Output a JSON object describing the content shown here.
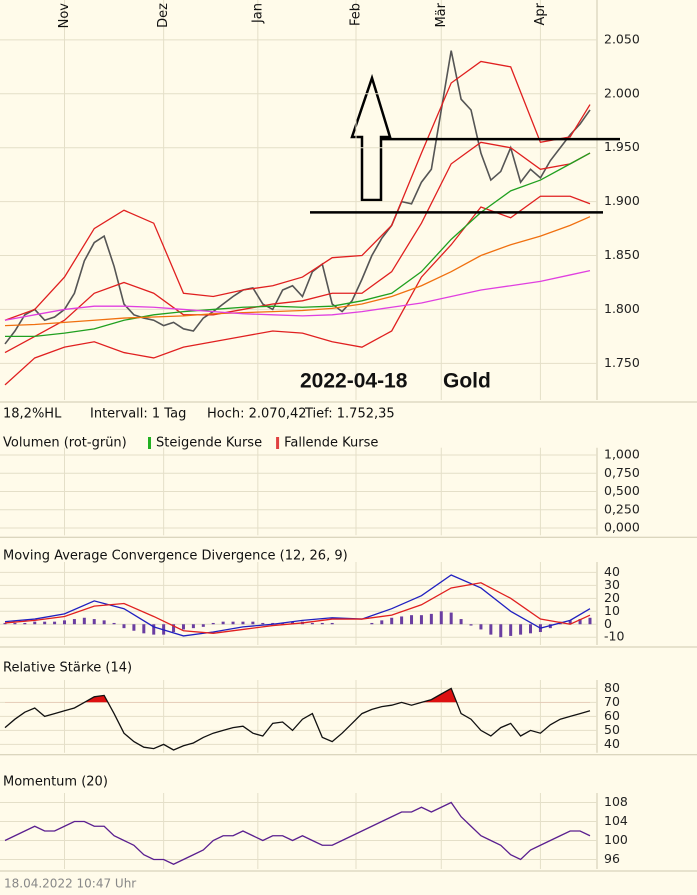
{
  "chart_data": [
    {
      "type": "line",
      "annotation": "2022-04-18",
      "symbol": "Gold",
      "info": [
        "18,2%HL",
        "Intervall: 1 Tag",
        "Hoch: 2.070,42",
        "Tief: 1.752,35"
      ],
      "xlim": [
        0,
        59
      ],
      "x_labels": [
        {
          "value": 6,
          "label": "Nov"
        },
        {
          "value": 16,
          "label": "Dez"
        },
        {
          "value": 25.5,
          "label": "Jan"
        },
        {
          "value": 35.4,
          "label": "Feb"
        },
        {
          "value": 44,
          "label": "Mär"
        },
        {
          "value": 54,
          "label": "Apr"
        }
      ],
      "ylim": [
        1716,
        2087
      ],
      "yticks": [
        {
          "value": 2050,
          "label": "2.050"
        },
        {
          "value": 2000,
          "label": "2.000"
        },
        {
          "value": 1950,
          "label": "1.950"
        },
        {
          "value": 1900,
          "label": "1.900"
        },
        {
          "value": 1850,
          "label": "1.850"
        },
        {
          "value": 1800,
          "label": "1.800"
        },
        {
          "value": 1750,
          "label": "1.750"
        }
      ],
      "levels": [
        1958,
        1890
      ],
      "series": [
        {
          "color": "#555555",
          "x": [
            0,
            1,
            2,
            3,
            4,
            5,
            6,
            7,
            8,
            9,
            10,
            11,
            12,
            13,
            14,
            15,
            16,
            17,
            18,
            19,
            20,
            21,
            22,
            23,
            24,
            25,
            26,
            27,
            28,
            29,
            30,
            31,
            32,
            33,
            34,
            35,
            36,
            37,
            38,
            39,
            40,
            41,
            42,
            43,
            44,
            45,
            46,
            47,
            48,
            49,
            50,
            51,
            52,
            53,
            54,
            55,
            56,
            57,
            58,
            59
          ],
          "values": [
            1768,
            1780,
            1795,
            1800,
            1790,
            1793,
            1800,
            1815,
            1845,
            1862,
            1868,
            1840,
            1805,
            1795,
            1792,
            1790,
            1785,
            1788,
            1782,
            1780,
            1792,
            1798,
            1805,
            1812,
            1818,
            1820,
            1805,
            1800,
            1818,
            1822,
            1812,
            1835,
            1842,
            1805,
            1798,
            1808,
            1828,
            1850,
            1866,
            1878,
            1900,
            1898,
            1918,
            1930,
            1985,
            2040,
            1995,
            1985,
            1945,
            1920,
            1928,
            1950,
            1918,
            1930,
            1922,
            1938,
            1950,
            1962,
            1972,
            1985
          ]
        },
        {
          "color": "#e02020",
          "x": [
            0,
            3,
            6,
            9,
            12,
            15,
            18,
            21,
            24,
            27,
            30,
            33,
            36,
            39,
            42,
            45,
            48,
            51,
            54,
            57,
            59
          ],
          "values": [
            1790,
            1800,
            1830,
            1875,
            1892,
            1880,
            1815,
            1812,
            1818,
            1822,
            1830,
            1848,
            1850,
            1878,
            1945,
            2010,
            2030,
            2025,
            1955,
            1960,
            1990
          ]
        },
        {
          "color": "#e02020",
          "x": [
            0,
            3,
            6,
            9,
            12,
            15,
            18,
            21,
            24,
            27,
            30,
            33,
            36,
            39,
            42,
            45,
            48,
            51,
            54,
            57,
            59
          ],
          "values": [
            1760,
            1775,
            1790,
            1815,
            1825,
            1815,
            1795,
            1795,
            1800,
            1805,
            1808,
            1815,
            1815,
            1835,
            1880,
            1935,
            1955,
            1950,
            1930,
            1935,
            1945
          ]
        },
        {
          "color": "#e02020",
          "x": [
            0,
            3,
            6,
            9,
            12,
            15,
            18,
            21,
            24,
            27,
            30,
            33,
            36,
            39,
            42,
            45,
            48,
            51,
            54,
            57,
            59
          ],
          "values": [
            1730,
            1755,
            1765,
            1770,
            1760,
            1755,
            1765,
            1770,
            1775,
            1780,
            1778,
            1770,
            1765,
            1780,
            1830,
            1860,
            1895,
            1885,
            1905,
            1905,
            1898
          ]
        },
        {
          "color": "#20a020",
          "x": [
            0,
            3,
            6,
            9,
            12,
            15,
            18,
            21,
            24,
            27,
            30,
            33,
            36,
            39,
            42,
            45,
            48,
            51,
            54,
            57,
            59
          ],
          "values": [
            1775,
            1775,
            1778,
            1782,
            1790,
            1795,
            1798,
            1800,
            1802,
            1803,
            1802,
            1803,
            1808,
            1815,
            1835,
            1865,
            1890,
            1910,
            1920,
            1935,
            1945
          ]
        },
        {
          "color": "#f07010",
          "x": [
            0,
            3,
            6,
            9,
            12,
            15,
            18,
            21,
            24,
            27,
            30,
            33,
            36,
            39,
            42,
            45,
            48,
            51,
            54,
            57,
            59
          ],
          "values": [
            1785,
            1786,
            1788,
            1790,
            1792,
            1793,
            1794,
            1796,
            1797,
            1798,
            1799,
            1801,
            1805,
            1812,
            1822,
            1835,
            1850,
            1860,
            1868,
            1878,
            1886
          ]
        },
        {
          "color": "#e040e0",
          "x": [
            0,
            3,
            6,
            9,
            12,
            15,
            18,
            21,
            24,
            27,
            30,
            33,
            36,
            39,
            42,
            45,
            48,
            51,
            54,
            57,
            59
          ],
          "values": [
            1790,
            1795,
            1800,
            1803,
            1803,
            1802,
            1800,
            1798,
            1796,
            1795,
            1794,
            1795,
            1798,
            1802,
            1806,
            1812,
            1818,
            1822,
            1826,
            1832,
            1836
          ]
        }
      ]
    },
    {
      "type": "bar",
      "title": "Volumen (rot-grün)",
      "xlim": [
        0,
        59
      ],
      "ylim": [
        -0.1,
        1.1
      ],
      "yticks": [
        {
          "value": 1,
          "label": "1,000"
        },
        {
          "value": 0.75,
          "label": "0,750"
        },
        {
          "value": 0.5,
          "label": "0,500"
        },
        {
          "value": 0.25,
          "label": "0,250"
        },
        {
          "value": 0,
          "label": "0,000"
        }
      ],
      "series": [
        {
          "name": "Steigende Kurse",
          "color": "#22b022",
          "values": []
        },
        {
          "name": "Fallende Kurse",
          "color": "#e04040",
          "values": []
        }
      ]
    },
    {
      "type": "macd",
      "title": "Moving Average Convergence Divergence (12, 26, 9)",
      "xlim": [
        0,
        59
      ],
      "ylim": [
        -16,
        48
      ],
      "yticks": [
        40,
        30,
        20,
        10,
        0,
        -10
      ],
      "series": [
        {
          "color": "#2020c0",
          "x": [
            0,
            3,
            6,
            9,
            12,
            15,
            18,
            21,
            24,
            27,
            30,
            33,
            36,
            39,
            42,
            45,
            48,
            51,
            54,
            57,
            59
          ],
          "values": [
            2,
            4,
            8,
            18,
            12,
            -2,
            -9,
            -6,
            -2,
            0,
            3,
            5,
            4,
            12,
            22,
            38,
            28,
            10,
            -3,
            3,
            12
          ]
        },
        {
          "color": "#e02020",
          "x": [
            0,
            3,
            6,
            9,
            12,
            15,
            18,
            21,
            24,
            27,
            30,
            33,
            36,
            39,
            42,
            45,
            48,
            51,
            54,
            57,
            59
          ],
          "values": [
            1,
            3,
            6,
            14,
            16,
            6,
            -5,
            -7,
            -4,
            -1,
            1,
            4,
            4,
            7,
            15,
            28,
            32,
            20,
            4,
            0,
            7
          ]
        }
      ],
      "histogram": {
        "color": "#6a3ea1",
        "values": [
          1,
          1,
          1,
          2,
          2,
          2,
          3,
          4,
          5,
          4,
          3,
          1,
          -3,
          -5,
          -7,
          -8,
          -8,
          -6,
          -4,
          -3,
          -2,
          1,
          2,
          2,
          2,
          2,
          1,
          1,
          1,
          2,
          2,
          1,
          1,
          1,
          0,
          0,
          0,
          1,
          3,
          5,
          6,
          7,
          7,
          8,
          10,
          9,
          4,
          -1,
          -4,
          -8,
          -10,
          -9,
          -8,
          -7,
          -6,
          -3,
          2,
          3,
          4,
          5
        ]
      }
    },
    {
      "type": "rsi",
      "title": "Relative Stärke (14)",
      "xlim": [
        0,
        59
      ],
      "ylim": [
        34,
        86
      ],
      "yticks": [
        80,
        70,
        60,
        50,
        40
      ],
      "threshold": 70,
      "fill": "#dd1111",
      "series": [
        {
          "color": "#111111",
          "values": [
            52,
            58,
            63,
            66,
            60,
            62,
            64,
            66,
            70,
            74,
            75,
            62,
            48,
            42,
            38,
            37,
            40,
            36,
            39,
            41,
            45,
            48,
            50,
            52,
            53,
            48,
            46,
            55,
            56,
            50,
            58,
            62,
            45,
            42,
            48,
            55,
            62,
            65,
            67,
            68,
            70,
            68,
            70,
            72,
            76,
            80,
            62,
            58,
            50,
            46,
            52,
            55,
            46,
            50,
            48,
            54,
            58,
            60,
            62,
            64
          ]
        }
      ]
    },
    {
      "type": "line",
      "title": "Momentum (20)",
      "xlim": [
        0,
        59
      ],
      "ylim": [
        94,
        110
      ],
      "yticks": [
        108,
        104,
        100,
        96
      ],
      "series": [
        {
          "color": "#5a1f8f",
          "values": [
            100,
            101,
            102,
            103,
            102,
            102,
            103,
            104,
            104,
            103,
            103,
            101,
            100,
            99,
            97,
            96,
            96,
            95,
            96,
            97,
            98,
            100,
            101,
            101,
            102,
            101,
            100,
            101,
            101,
            100,
            101,
            100,
            99,
            99,
            100,
            101,
            102,
            103,
            104,
            105,
            106,
            106,
            107,
            106,
            107,
            108,
            105,
            103,
            101,
            100,
            99,
            97,
            96,
            98,
            99,
            100,
            101,
            102,
            102,
            101
          ]
        }
      ]
    }
  ],
  "footer": "18.04.2022 10:47 Uhr"
}
